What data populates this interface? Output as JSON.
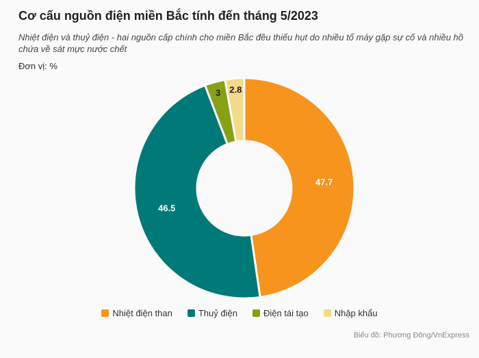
{
  "title": "Cơ cấu nguồn điện miền Bắc tính đến tháng 5/2023",
  "subtitle": "Nhiệt điện và thuỷ điện - hai nguồn cấp chính cho miền Bắc đều thiếu hụt do nhiều tổ máy gặp sự cố và nhiều hồ chứa về sát mực nước chết",
  "unit_label": "Đơn vị: %",
  "source": "Biểu đồ: Phương Đông/VnExpress",
  "chart_data": {
    "type": "pie",
    "variant": "donut",
    "title": "Cơ cấu nguồn điện miền Bắc tính đến tháng 5/2023",
    "unit": "%",
    "legend_position": "bottom",
    "series": [
      {
        "name": "Nhiệt điện than",
        "value": 47.7,
        "label": "47.7",
        "color": "#f7941d",
        "label_color": "#ffffff"
      },
      {
        "name": "Thuỷ điện",
        "value": 46.5,
        "label": "46.5",
        "color": "#007a78",
        "label_color": "#ffffff"
      },
      {
        "name": "Điện tái tạo",
        "value": 3,
        "label": "3",
        "color": "#86a214",
        "label_color": "#222222"
      },
      {
        "name": "Nhập khẩu",
        "value": 2.8,
        "label": "2.8",
        "color": "#f3d98a",
        "label_color": "#222222"
      }
    ]
  }
}
